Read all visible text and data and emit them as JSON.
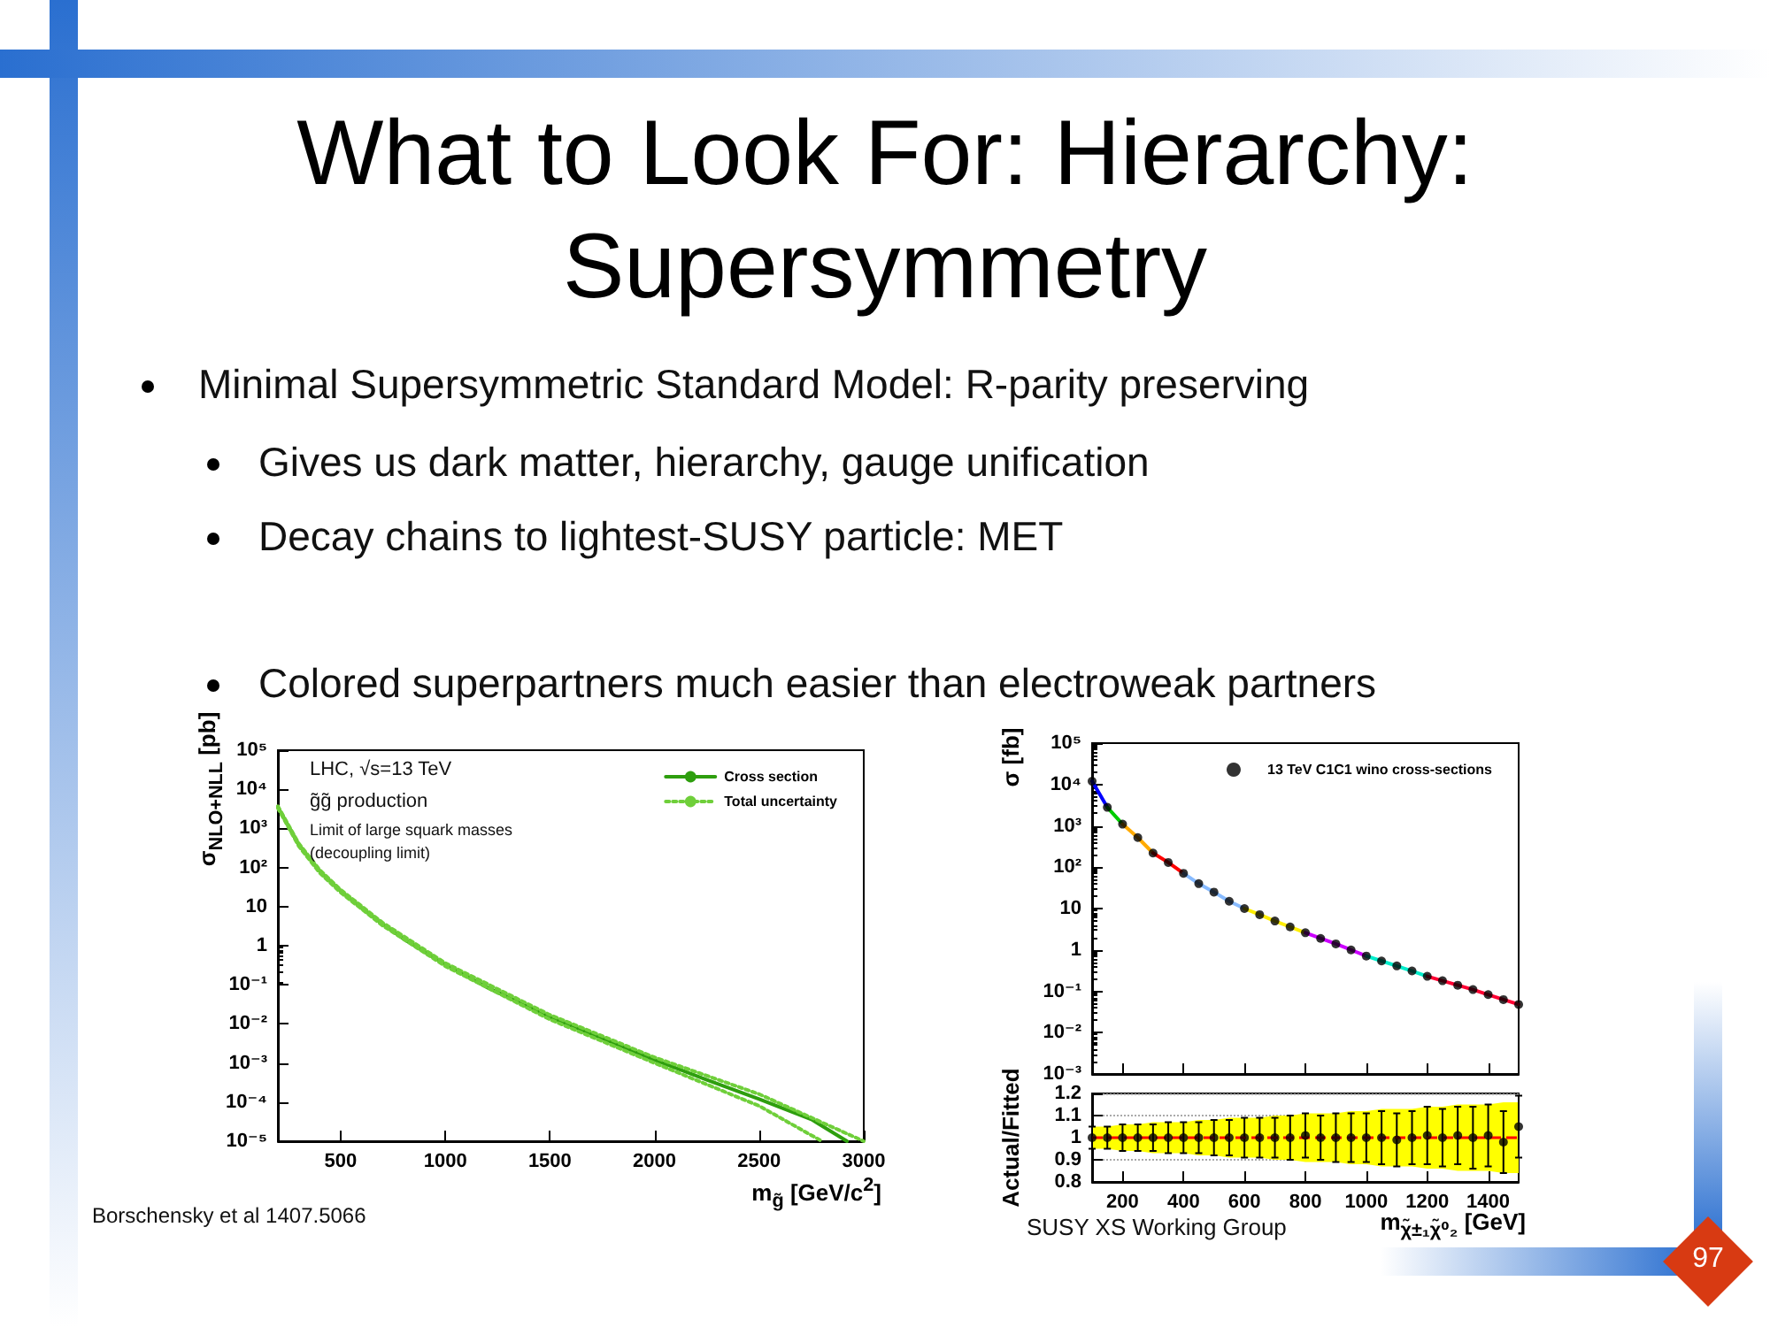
{
  "chart_data": [
    {
      "type": "line",
      "title": "What to Look For: Hierarchy: Supersymmetry",
      "xlabel": "m$_{g̃}$ [GeV/c$^{2}$]",
      "ylabel": "σ$_{NLO+NLL}$ [pb]",
      "annotations": [
        "Minimal Supersymmetric Standard Model: R-parity preserving",
        "Gives us dark matter, hierarchy, gauge unification",
        "Decay chains to lightest-SUSY particle: MET",
        "Colored superpartners much easier than electroweak partners",
        "LHC,  √s=13 TeV",
        "g̃g̃ production",
        "Limit of large squark masses",
        "(decoupling limit)",
        "Borschensky et al 1407.5066",
        "97"
      ],
      "log": "y",
      "xlim": [
        200,
        3000
      ],
      "xticks": [
        500,
        1000,
        1500,
        2000,
        2500,
        3000
      ],
      "ylim": [
        1e-05,
        100000
      ],
      "yticks": [
        {
          "value": 1e-05,
          "label": "10⁻⁵"
        },
        {
          "value": 0.0001,
          "label": "10⁻⁴"
        },
        {
          "value": 0.001,
          "label": "10⁻³"
        },
        {
          "value": 0.01,
          "label": "10⁻²"
        },
        {
          "value": 0.1,
          "label": "10⁻¹"
        },
        1,
        10,
        {
          "value": 100,
          "label": "10²"
        },
        {
          "value": 1000,
          "label": "10³"
        },
        {
          "value": 10000,
          "label": "10⁴"
        },
        {
          "value": 100000,
          "label": "10⁵"
        }
      ],
      "legend": "top right",
      "series": [
        {
          "name": "Cross section",
          "color": "#2e9e0e",
          "line_style": "solid",
          "x": [
            200,
            300,
            400,
            500,
            600,
            700,
            800,
            1000,
            1200,
            1500,
            1750,
            2000,
            2250,
            2500,
            2750,
            2920
          ],
          "values": [
            3500,
            380,
            80,
            25,
            9.2,
            3.6,
            1.5,
            0.33,
            0.086,
            0.015,
            0.0043,
            0.0012,
            0.00037,
            0.00012,
            3.6e-05,
            1e-05
          ]
        },
        {
          "name": "Total uncertainty",
          "color": "#6fcf3a",
          "line_style": "dotted",
          "x": [
            200,
            300,
            400,
            500,
            700,
            1000,
            1500,
            2000,
            2500,
            3000
          ],
          "values": [
            3700,
            410,
            87,
            27,
            3.9,
            0.36,
            0.017,
            0.0014,
            0.00016,
            1e-05
          ]
        },
        {
          "color": "#6fcf3a",
          "line_style": "dotted",
          "x": [
            200,
            300,
            400,
            500,
            700,
            1000,
            1500,
            2000,
            2500,
            2800
          ],
          "values": [
            3300,
            350,
            73,
            23,
            3.3,
            0.3,
            0.013,
            0.001,
            8e-05,
            1e-05
          ]
        }
      ]
    },
    {
      "type": "scatter",
      "ylabel": "σ [fb]",
      "log": "y",
      "xlim": [
        100,
        1500
      ],
      "xticks": [
        200,
        400,
        600,
        800,
        1000,
        1200,
        1400
      ],
      "ylim": [
        0.001,
        100000
      ],
      "yticks": [
        {
          "value": 0.001,
          "label": "10⁻³"
        },
        {
          "value": 0.01,
          "label": "10⁻²"
        },
        {
          "value": 0.1,
          "label": "10⁻¹"
        },
        1,
        10,
        {
          "value": 100,
          "label": "10²"
        },
        {
          "value": 1000,
          "label": "10³"
        },
        {
          "value": 10000,
          "label": "10⁴"
        },
        {
          "value": 100000,
          "label": "10⁵"
        }
      ],
      "tick_labels": "y",
      "legend": "top right",
      "series": [
        {
          "name": "13 TeV C1C1 wino cross-sections",
          "color": "#000000",
          "marker": "circle",
          "x": [
            100,
            150,
            200,
            250,
            300,
            350,
            400,
            450,
            500,
            550,
            600,
            650,
            700,
            750,
            800,
            850,
            900,
            950,
            1000,
            1050,
            1100,
            1150,
            1200,
            1250,
            1300,
            1350,
            1400,
            1450,
            1500
          ],
          "values": [
            12000,
            2800,
            1100,
            520,
            220,
            130,
            71,
            40,
            25,
            15,
            10,
            7.1,
            5,
            3.6,
            2.6,
            1.9,
            1.4,
            1,
            0.71,
            0.54,
            0.41,
            0.31,
            0.23,
            0.18,
            0.14,
            0.11,
            0.083,
            0.063,
            0.048
          ]
        },
        {
          "type": "line",
          "color": "#0000ff",
          "x": [
            100,
            150
          ],
          "values": [
            12000,
            2800
          ]
        },
        {
          "type": "line",
          "color": "#00cc00",
          "x": [
            150,
            200
          ],
          "values": [
            2800,
            1100
          ]
        },
        {
          "type": "line",
          "color": "#ffaa00",
          "x": [
            200,
            250,
            300
          ],
          "values": [
            1100,
            520,
            220
          ]
        },
        {
          "type": "line",
          "color": "#ff0000",
          "x": [
            300,
            350,
            400
          ],
          "values": [
            220,
            130,
            71
          ]
        },
        {
          "type": "line",
          "color": "#88bbff",
          "x": [
            400,
            450,
            500,
            550,
            600
          ],
          "values": [
            71,
            40,
            25,
            15,
            10
          ]
        },
        {
          "type": "line",
          "color": "#ffee00",
          "x": [
            600,
            650,
            700,
            750,
            800
          ],
          "values": [
            10,
            7.1,
            5,
            3.6,
            2.6
          ]
        },
        {
          "type": "line",
          "color": "#cc00ff",
          "x": [
            800,
            850,
            900,
            950,
            1000
          ],
          "values": [
            2.6,
            1.9,
            1.4,
            1,
            0.71
          ]
        },
        {
          "type": "line",
          "color": "#00eecc",
          "x": [
            1000,
            1050,
            1100,
            1150,
            1200
          ],
          "values": [
            0.71,
            0.54,
            0.41,
            0.31,
            0.23
          ]
        },
        {
          "type": "line",
          "color": "#ff0033",
          "x": [
            1200,
            1250,
            1300,
            1350,
            1400,
            1450,
            1500
          ],
          "values": [
            0.23,
            0.18,
            0.14,
            0.11,
            0.083,
            0.063,
            0.048
          ]
        }
      ]
    },
    {
      "type": "scatter",
      "ylabel": "Actual/Fitted",
      "xlabel": "m$_{χ̃±₁χ̃⁰₂}$ [GeV]",
      "xlim": [
        100,
        1500
      ],
      "xticks": [
        200,
        400,
        600,
        800,
        1000,
        1200,
        1400
      ],
      "ylim": [
        0.8,
        1.2
      ],
      "yticks": [
        0.8,
        0.9,
        1,
        1.1,
        1.2
      ],
      "grid": "y",
      "annotations": [
        "SUSY XS Working Group"
      ],
      "ref_lines": [
        {
          "axis": "y",
          "value": 1,
          "color": "#ff0000",
          "line_style": "dashed"
        }
      ],
      "series": [
        {
          "color": "#000000",
          "marker": "circle",
          "lower": [
            0.95,
            0.95,
            0.94,
            0.94,
            0.93,
            0.93,
            0.93,
            0.92,
            0.92,
            0.91,
            0.91,
            0.91,
            0.9,
            0.9,
            0.89,
            0.89,
            0.89,
            0.88,
            0.88,
            0.87,
            0.87,
            0.87,
            0.86,
            0.86,
            0.85,
            0.85,
            0.85,
            0.84,
            0.84
          ],
          "upper": [
            1.05,
            1.05,
            1.06,
            1.06,
            1.07,
            1.07,
            1.07,
            1.08,
            1.08,
            1.09,
            1.09,
            1.09,
            1.1,
            1.1,
            1.11,
            1.11,
            1.11,
            1.12,
            1.12,
            1.13,
            1.13,
            1.13,
            1.14,
            1.14,
            1.15,
            1.15,
            1.15,
            1.16,
            1.16
          ],
          "x": [
            100,
            150,
            200,
            250,
            300,
            350,
            400,
            450,
            500,
            550,
            600,
            650,
            700,
            750,
            800,
            850,
            900,
            950,
            1000,
            1050,
            1100,
            1150,
            1200,
            1250,
            1300,
            1350,
            1400,
            1450,
            1500
          ],
          "values": [
            1,
            1,
            1,
            1,
            1,
            1,
            1,
            1,
            1,
            1,
            1,
            1,
            1,
            1,
            1.01,
            1,
            1,
            1,
            1,
            1,
            0.99,
            1,
            1.01,
            1,
            1.01,
            1,
            1.01,
            0.98,
            1.05
          ],
          "errors": [
            0.05,
            0.05,
            0.06,
            0.06,
            0.06,
            0.07,
            0.07,
            0.07,
            0.08,
            0.08,
            0.09,
            0.09,
            0.09,
            0.1,
            0.1,
            0.1,
            0.11,
            0.11,
            0.11,
            0.12,
            0.12,
            0.12,
            0.13,
            0.13,
            0.13,
            0.14,
            0.14,
            0.14,
            0.14
          ]
        }
      ]
    }
  ]
}
